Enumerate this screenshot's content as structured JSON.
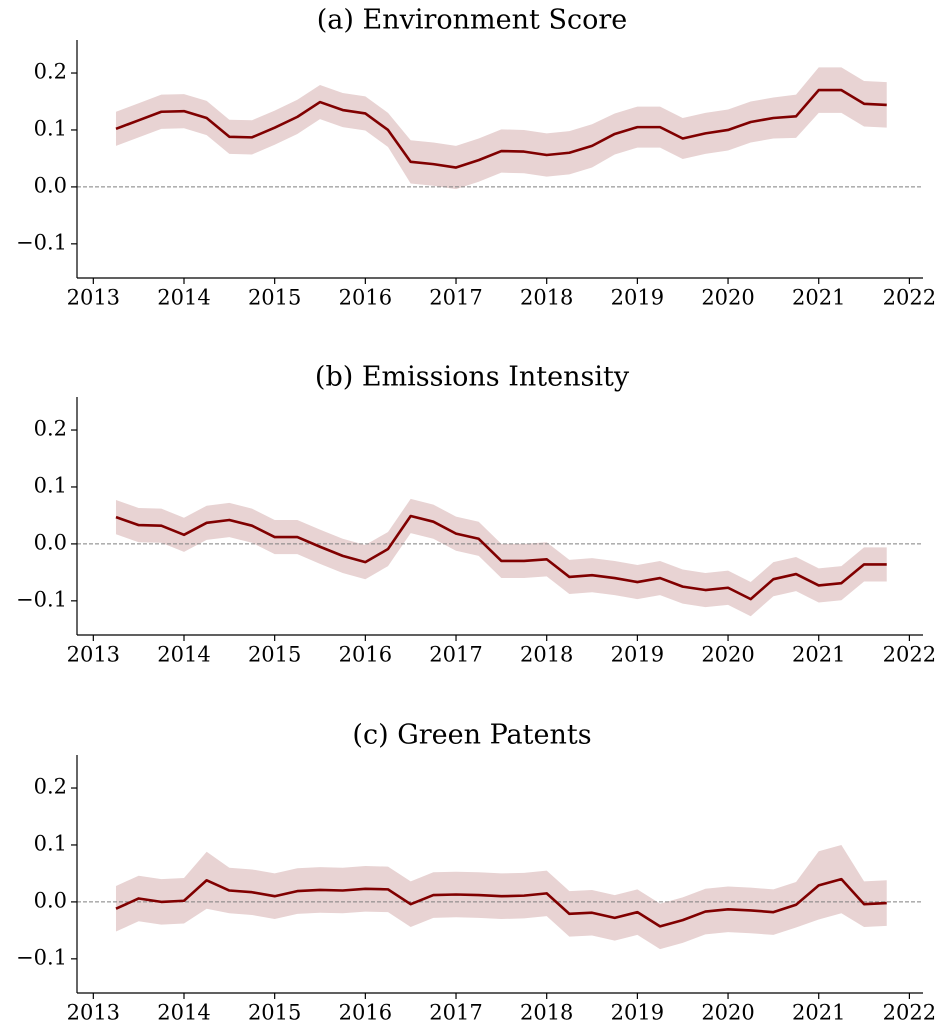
{
  "chart_data": [
    {
      "type": "line",
      "title": "(a) Environment Score",
      "x": [
        2013.25,
        2013.5,
        2013.75,
        2014,
        2014.25,
        2014.5,
        2014.75,
        2015,
        2015.25,
        2015.5,
        2015.75,
        2016,
        2016.25,
        2016.5,
        2016.75,
        2017,
        2017.25,
        2017.5,
        2017.75,
        2018,
        2018.25,
        2018.5,
        2018.75,
        2019,
        2019.25,
        2019.5,
        2019.75,
        2020,
        2020.25,
        2020.5,
        2020.75,
        2021,
        2021.25,
        2021.5,
        2021.75
      ],
      "series": [
        {
          "color": "#800000",
          "band_color": "#e8d3d3",
          "values": [
            0.102,
            0.117,
            0.132,
            0.133,
            0.121,
            0.088,
            0.087,
            0.104,
            0.123,
            0.149,
            0.135,
            0.129,
            0.1,
            0.044,
            0.04,
            0.034,
            0.047,
            0.063,
            0.062,
            0.056,
            0.06,
            0.072,
            0.093,
            0.105,
            0.105,
            0.085,
            0.094,
            0.1,
            0.114,
            0.121,
            0.124,
            0.17,
            0.17,
            0.146,
            0.144
          ],
          "lower": [
            0.072,
            0.087,
            0.102,
            0.103,
            0.091,
            0.058,
            0.057,
            0.074,
            0.093,
            0.119,
            0.105,
            0.099,
            0.07,
            0.006,
            0.002,
            -0.004,
            0.009,
            0.025,
            0.024,
            0.018,
            0.022,
            0.034,
            0.057,
            0.069,
            0.069,
            0.049,
            0.058,
            0.064,
            0.078,
            0.085,
            0.086,
            0.13,
            0.13,
            0.106,
            0.104
          ],
          "upper": [
            0.132,
            0.147,
            0.162,
            0.163,
            0.151,
            0.118,
            0.117,
            0.134,
            0.153,
            0.179,
            0.165,
            0.159,
            0.13,
            0.082,
            0.078,
            0.072,
            0.085,
            0.101,
            0.1,
            0.094,
            0.098,
            0.11,
            0.129,
            0.141,
            0.141,
            0.121,
            0.13,
            0.136,
            0.15,
            0.157,
            0.162,
            0.21,
            0.21,
            0.186,
            0.184
          ]
        }
      ],
      "xlim": [
        2012.82,
        2022.15
      ],
      "xticks": [
        2013,
        2014,
        2015,
        2016,
        2017,
        2018,
        2019,
        2020,
        2021,
        2022
      ],
      "ylim": [
        -0.16,
        0.258
      ],
      "yticks": [
        {
          "value": -0.1,
          "label": "−0.1"
        },
        {
          "value": 0,
          "label": "0.0"
        },
        {
          "value": 0.1,
          "label": "0.1"
        },
        {
          "value": 0.2,
          "label": "0.2"
        }
      ],
      "hline": 0
    },
    {
      "type": "line",
      "title": "(b) Emissions Intensity",
      "x": [
        2013.25,
        2013.5,
        2013.75,
        2014,
        2014.25,
        2014.5,
        2014.75,
        2015,
        2015.25,
        2015.5,
        2015.75,
        2016,
        2016.25,
        2016.5,
        2016.75,
        2017,
        2017.25,
        2017.5,
        2017.75,
        2018,
        2018.25,
        2018.5,
        2018.75,
        2019,
        2019.25,
        2019.5,
        2019.75,
        2020,
        2020.25,
        2020.5,
        2020.75,
        2021,
        2021.25,
        2021.5,
        2021.75
      ],
      "series": [
        {
          "color": "#800000",
          "band_color": "#e8d3d3",
          "values": [
            0.047,
            0.033,
            0.032,
            0.016,
            0.037,
            0.042,
            0.032,
            0.012,
            0.012,
            -0.005,
            -0.021,
            -0.032,
            -0.009,
            0.049,
            0.039,
            0.018,
            0.009,
            -0.03,
            -0.03,
            -0.027,
            -0.058,
            -0.055,
            -0.06,
            -0.067,
            -0.06,
            -0.075,
            -0.081,
            -0.077,
            -0.097,
            -0.062,
            -0.053,
            -0.073,
            -0.069,
            -0.036,
            -0.036
          ],
          "lower": [
            0.017,
            0.003,
            0.002,
            -0.014,
            0.007,
            0.012,
            0.002,
            -0.018,
            -0.018,
            -0.035,
            -0.051,
            -0.062,
            -0.039,
            0.019,
            0.009,
            -0.012,
            -0.021,
            -0.06,
            -0.06,
            -0.057,
            -0.088,
            -0.085,
            -0.09,
            -0.097,
            -0.09,
            -0.105,
            -0.111,
            -0.107,
            -0.127,
            -0.092,
            -0.083,
            -0.103,
            -0.099,
            -0.066,
            -0.066
          ],
          "upper": [
            0.077,
            0.063,
            0.062,
            0.046,
            0.067,
            0.072,
            0.062,
            0.042,
            0.042,
            0.025,
            0.009,
            -0.002,
            0.021,
            0.079,
            0.069,
            0.048,
            0.039,
            0.0,
            0.0,
            0.003,
            -0.028,
            -0.025,
            -0.03,
            -0.037,
            -0.03,
            -0.045,
            -0.051,
            -0.047,
            -0.067,
            -0.032,
            -0.023,
            -0.043,
            -0.039,
            -0.006,
            -0.006
          ]
        }
      ],
      "xlim": [
        2012.82,
        2022.15
      ],
      "xticks": [
        2013,
        2014,
        2015,
        2016,
        2017,
        2018,
        2019,
        2020,
        2021,
        2022
      ],
      "ylim": [
        -0.16,
        0.258
      ],
      "yticks": [
        {
          "value": -0.1,
          "label": "−0.1"
        },
        {
          "value": 0,
          "label": "0.0"
        },
        {
          "value": 0.1,
          "label": "0.1"
        },
        {
          "value": 0.2,
          "label": "0.2"
        }
      ],
      "hline": 0
    },
    {
      "type": "line",
      "title": "(c) Green Patents",
      "x": [
        2013.25,
        2013.5,
        2013.75,
        2014,
        2014.25,
        2014.5,
        2014.75,
        2015,
        2015.25,
        2015.5,
        2015.75,
        2016,
        2016.25,
        2016.5,
        2016.75,
        2017,
        2017.25,
        2017.5,
        2017.75,
        2018,
        2018.25,
        2018.5,
        2018.75,
        2019,
        2019.25,
        2019.5,
        2019.75,
        2020,
        2020.25,
        2020.5,
        2020.75,
        2021,
        2021.25,
        2021.5,
        2021.75
      ],
      "series": [
        {
          "color": "#800000",
          "band_color": "#e8d3d3",
          "values": [
            -0.012,
            0.006,
            0.0,
            0.002,
            0.038,
            0.02,
            0.017,
            0.01,
            0.019,
            0.021,
            0.02,
            0.023,
            0.022,
            -0.004,
            0.012,
            0.013,
            0.012,
            0.01,
            0.011,
            0.015,
            -0.021,
            -0.019,
            -0.028,
            -0.018,
            -0.043,
            -0.032,
            -0.017,
            -0.013,
            -0.015,
            -0.018,
            -0.005,
            0.029,
            0.04,
            -0.004,
            -0.002
          ],
          "lower": [
            -0.052,
            -0.034,
            -0.04,
            -0.038,
            -0.012,
            -0.02,
            -0.023,
            -0.03,
            -0.021,
            -0.019,
            -0.02,
            -0.017,
            -0.018,
            -0.044,
            -0.028,
            -0.027,
            -0.028,
            -0.03,
            -0.029,
            -0.025,
            -0.061,
            -0.059,
            -0.068,
            -0.058,
            -0.083,
            -0.072,
            -0.057,
            -0.053,
            -0.055,
            -0.058,
            -0.045,
            -0.031,
            -0.02,
            -0.044,
            -0.042
          ],
          "upper": [
            0.028,
            0.046,
            0.04,
            0.042,
            0.088,
            0.06,
            0.057,
            0.05,
            0.059,
            0.061,
            0.06,
            0.063,
            0.062,
            0.036,
            0.052,
            0.053,
            0.052,
            0.05,
            0.051,
            0.055,
            0.019,
            0.021,
            0.012,
            0.022,
            -0.003,
            0.008,
            0.023,
            0.027,
            0.025,
            0.022,
            0.035,
            0.089,
            0.1,
            0.036,
            0.038
          ]
        }
      ],
      "xlim": [
        2012.82,
        2022.15
      ],
      "xticks": [
        2013,
        2014,
        2015,
        2016,
        2017,
        2018,
        2019,
        2020,
        2021,
        2022
      ],
      "ylim": [
        -0.16,
        0.258
      ],
      "yticks": [
        {
          "value": -0.1,
          "label": "−0.1"
        },
        {
          "value": 0,
          "label": "0.0"
        },
        {
          "value": 0.1,
          "label": "0.1"
        },
        {
          "value": 0.2,
          "label": "0.2"
        }
      ],
      "hline": 0
    }
  ]
}
